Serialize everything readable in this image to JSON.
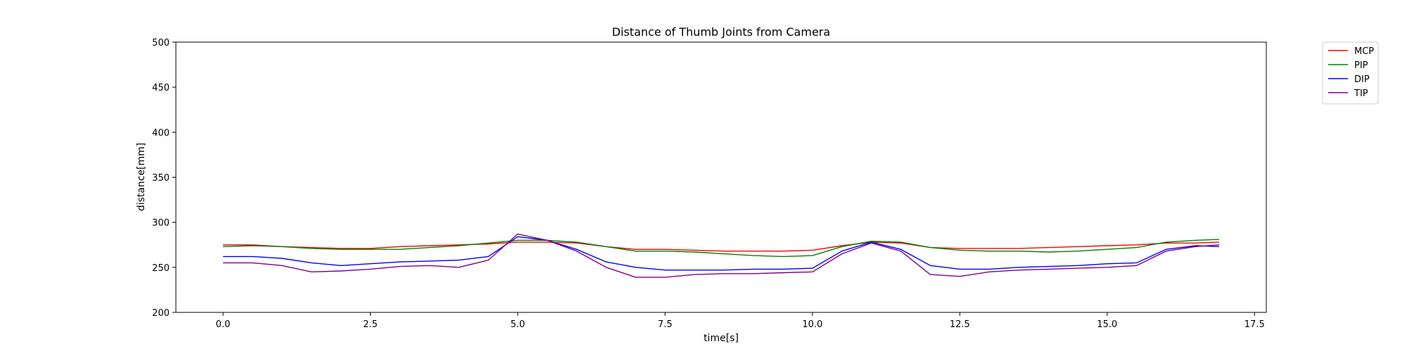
{
  "chart_data": {
    "type": "line",
    "title": "Distance of Thumb Joints from Camera",
    "xlabel": "time[s]",
    "ylabel": "distance[mm]",
    "xlim": [
      -0.8,
      17.7
    ],
    "ylim": [
      200,
      500
    ],
    "xticks": [
      0.0,
      2.5,
      5.0,
      7.5,
      10.0,
      12.5,
      15.0,
      17.5
    ],
    "xtick_labels": [
      "0.0",
      "2.5",
      "5.0",
      "7.5",
      "10.0",
      "12.5",
      "15.0",
      "17.5"
    ],
    "yticks": [
      200,
      250,
      300,
      350,
      400,
      450,
      500
    ],
    "ytick_labels": [
      "200",
      "250",
      "300",
      "350",
      "400",
      "450",
      "500"
    ],
    "grid": false,
    "legend_position": "outside-top-right",
    "series": [
      {
        "name": "MCP",
        "color": "#ff0000",
        "x": [
          0.0,
          0.5,
          1.0,
          1.5,
          2.0,
          2.5,
          3.0,
          3.5,
          4.0,
          4.5,
          5.0,
          5.5,
          6.0,
          6.5,
          7.0,
          7.5,
          8.0,
          8.5,
          9.0,
          9.5,
          10.0,
          10.5,
          11.0,
          11.5,
          12.0,
          12.5,
          13.0,
          13.5,
          14.0,
          14.5,
          15.0,
          15.5,
          16.0,
          16.5,
          16.9
        ],
        "y": [
          275,
          275,
          273,
          272,
          271,
          271,
          273,
          274,
          275,
          276,
          278,
          278,
          277,
          273,
          270,
          270,
          269,
          268,
          268,
          268,
          269,
          274,
          278,
          277,
          272,
          271,
          271,
          271,
          272,
          273,
          274,
          275,
          277,
          277,
          278
        ]
      },
      {
        "name": "PIP",
        "color": "#008000",
        "x": [
          0.0,
          0.5,
          1.0,
          1.5,
          2.0,
          2.5,
          3.0,
          3.5,
          4.0,
          4.5,
          5.0,
          5.5,
          6.0,
          6.5,
          7.0,
          7.5,
          8.0,
          8.5,
          9.0,
          9.5,
          10.0,
          10.5,
          11.0,
          11.5,
          12.0,
          12.5,
          13.0,
          13.5,
          14.0,
          14.5,
          15.0,
          15.5,
          16.0,
          16.5,
          16.9
        ],
        "y": [
          273,
          274,
          273,
          271,
          270,
          270,
          270,
          272,
          274,
          277,
          280,
          280,
          278,
          273,
          268,
          268,
          267,
          265,
          263,
          262,
          263,
          273,
          279,
          278,
          272,
          269,
          268,
          268,
          267,
          268,
          270,
          272,
          278,
          280,
          281
        ]
      },
      {
        "name": "DIP",
        "color": "#0000ff",
        "x": [
          0.0,
          0.5,
          1.0,
          1.5,
          2.0,
          2.5,
          3.0,
          3.5,
          4.0,
          4.5,
          5.0,
          5.5,
          6.0,
          6.5,
          7.0,
          7.5,
          8.0,
          8.5,
          9.0,
          9.5,
          10.0,
          10.5,
          11.0,
          11.5,
          12.0,
          12.5,
          13.0,
          13.5,
          14.0,
          14.5,
          15.0,
          15.5,
          16.0,
          16.5,
          16.9
        ],
        "y": [
          262,
          262,
          260,
          255,
          252,
          254,
          256,
          257,
          258,
          262,
          284,
          280,
          270,
          256,
          250,
          247,
          247,
          247,
          248,
          248,
          249,
          268,
          278,
          270,
          252,
          248,
          248,
          250,
          251,
          252,
          254,
          255,
          270,
          274,
          273
        ]
      },
      {
        "name": "TIP",
        "color": "#800080",
        "x": [
          0.0,
          0.5,
          1.0,
          1.5,
          2.0,
          2.5,
          3.0,
          3.5,
          4.0,
          4.5,
          5.0,
          5.5,
          6.0,
          6.5,
          7.0,
          7.5,
          8.0,
          8.5,
          9.0,
          9.5,
          10.0,
          10.5,
          11.0,
          11.5,
          12.0,
          12.5,
          13.0,
          13.5,
          14.0,
          14.5,
          15.0,
          15.5,
          16.0,
          16.5,
          16.9
        ],
        "y": [
          255,
          255,
          252,
          245,
          246,
          248,
          251,
          252,
          250,
          258,
          287,
          280,
          268,
          250,
          239,
          239,
          242,
          243,
          243,
          244,
          245,
          265,
          277,
          268,
          242,
          240,
          245,
          247,
          248,
          249,
          250,
          252,
          268,
          273,
          275
        ]
      }
    ]
  }
}
